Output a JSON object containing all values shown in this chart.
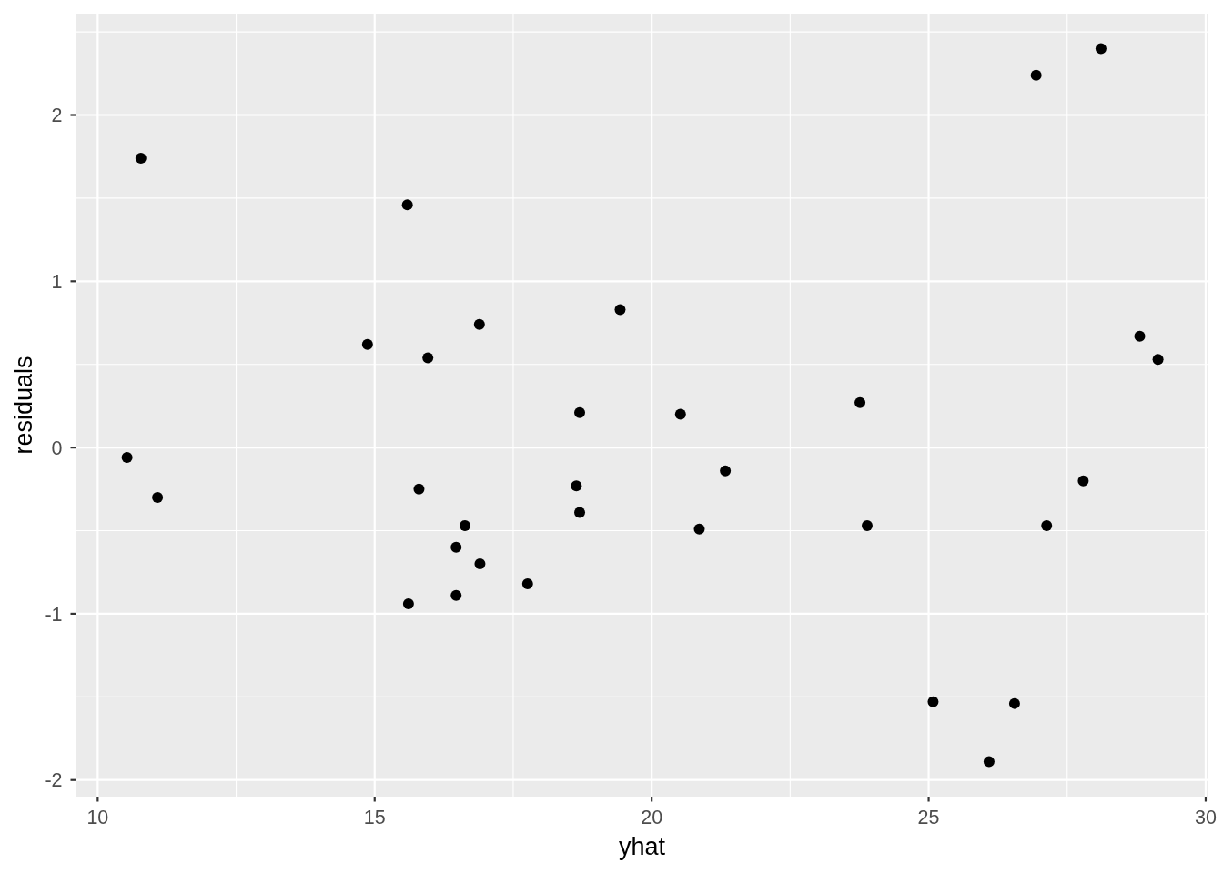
{
  "chart_data": {
    "type": "scatter",
    "xlabel": "yhat",
    "ylabel": "residuals",
    "x": [
      10.53,
      10.78,
      11.08,
      14.87,
      15.59,
      15.61,
      15.8,
      15.96,
      16.47,
      16.47,
      16.63,
      16.89,
      16.9,
      17.76,
      18.64,
      18.7,
      18.7,
      19.43,
      20.52,
      20.86,
      21.33,
      23.76,
      23.89,
      25.08,
      26.09,
      26.55,
      26.94,
      27.13,
      27.79,
      28.11,
      28.81,
      29.14
    ],
    "values": [
      -0.06,
      1.74,
      -0.3,
      0.62,
      1.46,
      -0.94,
      -0.25,
      0.54,
      -0.6,
      -0.89,
      -0.47,
      0.74,
      -0.7,
      -0.82,
      -0.23,
      0.21,
      -0.39,
      0.83,
      0.2,
      -0.49,
      -0.14,
      0.27,
      -0.47,
      -1.53,
      -1.89,
      -1.54,
      2.24,
      -0.47,
      -0.2,
      2.4,
      0.67,
      0.53
    ],
    "color": "#000000",
    "marker": "circle",
    "xlim": [
      9.6,
      30.05
    ],
    "ylim": [
      -2.1,
      2.61
    ],
    "xticks": [
      10,
      {
        "value": 12.5,
        "label": null
      },
      15,
      {
        "value": 17.5,
        "label": null
      },
      20,
      {
        "value": 22.5,
        "label": null
      },
      25,
      {
        "value": 27.5,
        "label": null
      },
      30
    ],
    "yticks": [
      {
        "value": -1.5,
        "label": null
      },
      -2,
      -1,
      {
        "value": -0.5,
        "label": null
      },
      0,
      {
        "value": 0.5,
        "label": null
      },
      1,
      {
        "value": 1.5,
        "label": null
      },
      2,
      {
        "value": 2.5,
        "label": null
      }
    ],
    "grid": true
  }
}
